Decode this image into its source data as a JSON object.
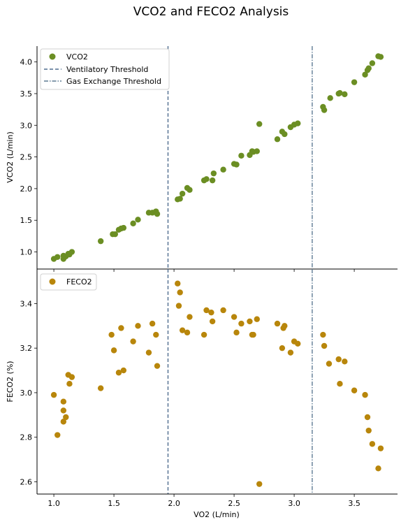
{
  "title": "VCO2 and FECO2 Analysis",
  "xlabel": "VO2 (L/min)",
  "colors": {
    "vco2": "#6b8e23",
    "feco2": "#b8860b",
    "vt_line": "#4f6d8f",
    "get_line": "#5e7b94"
  },
  "chart_data": [
    {
      "type": "scatter",
      "ylabel": "VCO2 (L/min)",
      "xlim": [
        0.86,
        3.86
      ],
      "ylim": [
        0.73,
        4.25
      ],
      "x_ticks": [
        1.0,
        1.5,
        2.0,
        2.5,
        3.0,
        3.5
      ],
      "y_ticks": [
        1.0,
        1.5,
        2.0,
        2.5,
        3.0,
        3.5,
        4.0
      ],
      "legend_position": "top-left",
      "legend": [
        "VCO2",
        "Ventilatory Threshold",
        "Gas Exchange Threshold"
      ],
      "series": [
        {
          "name": "VCO2",
          "points": [
            [
              1.0,
              0.89
            ],
            [
              1.03,
              0.92
            ],
            [
              1.08,
              0.94
            ],
            [
              1.08,
              0.89
            ],
            [
              1.1,
              0.93
            ],
            [
              1.12,
              0.97
            ],
            [
              1.13,
              0.96
            ],
            [
              1.15,
              1.0
            ],
            [
              1.39,
              1.17
            ],
            [
              1.49,
              1.28
            ],
            [
              1.51,
              1.28
            ],
            [
              1.54,
              1.35
            ],
            [
              1.56,
              1.37
            ],
            [
              1.58,
              1.38
            ],
            [
              1.66,
              1.45
            ],
            [
              1.7,
              1.51
            ],
            [
              1.79,
              1.62
            ],
            [
              1.82,
              1.62
            ],
            [
              1.85,
              1.63
            ],
            [
              1.85,
              1.64
            ],
            [
              1.86,
              1.6
            ],
            [
              2.03,
              1.83
            ],
            [
              2.05,
              1.84
            ],
            [
              2.07,
              1.92
            ],
            [
              2.11,
              2.01
            ],
            [
              2.13,
              1.98
            ],
            [
              2.25,
              2.13
            ],
            [
              2.27,
              2.15
            ],
            [
              2.32,
              2.13
            ],
            [
              2.33,
              2.24
            ],
            [
              2.41,
              2.3
            ],
            [
              2.5,
              2.39
            ],
            [
              2.52,
              2.38
            ],
            [
              2.56,
              2.52
            ],
            [
              2.63,
              2.53
            ],
            [
              2.65,
              2.59
            ],
            [
              2.66,
              2.58
            ],
            [
              2.69,
              2.59
            ],
            [
              2.71,
              3.02
            ],
            [
              2.86,
              2.78
            ],
            [
              2.9,
              2.9
            ],
            [
              2.92,
              2.86
            ],
            [
              2.97,
              2.97
            ],
            [
              3.0,
              3.01
            ],
            [
              3.03,
              3.03
            ],
            [
              3.24,
              3.29
            ],
            [
              3.25,
              3.24
            ],
            [
              3.3,
              3.43
            ],
            [
              3.37,
              3.5
            ],
            [
              3.38,
              3.51
            ],
            [
              3.42,
              3.49
            ],
            [
              3.5,
              3.68
            ],
            [
              3.59,
              3.8
            ],
            [
              3.61,
              3.87
            ],
            [
              3.62,
              3.9
            ],
            [
              3.65,
              3.98
            ],
            [
              3.7,
              4.09
            ],
            [
              3.72,
              4.08
            ]
          ]
        }
      ],
      "ventilatory_threshold": 1.95,
      "gas_exchange_threshold": 3.15
    },
    {
      "type": "scatter",
      "ylabel": "FECO2 (%)",
      "xlim": [
        0.86,
        3.86
      ],
      "ylim": [
        2.545,
        3.555
      ],
      "x_ticks": [
        1.0,
        1.5,
        2.0,
        2.5,
        3.0,
        3.5
      ],
      "y_ticks": [
        2.6,
        2.8,
        3.0,
        3.2,
        3.4
      ],
      "legend_position": "top-left",
      "legend": [
        "FECO2"
      ],
      "series": [
        {
          "name": "FECO2",
          "points": [
            [
              1.0,
              2.99
            ],
            [
              1.03,
              2.81
            ],
            [
              1.08,
              2.87
            ],
            [
              1.08,
              2.92
            ],
            [
              1.08,
              2.96
            ],
            [
              1.1,
              2.89
            ],
            [
              1.12,
              3.08
            ],
            [
              1.13,
              3.04
            ],
            [
              1.15,
              3.07
            ],
            [
              1.39,
              3.02
            ],
            [
              1.48,
              3.26
            ],
            [
              1.5,
              3.19
            ],
            [
              1.54,
              3.09
            ],
            [
              1.56,
              3.29
            ],
            [
              1.58,
              3.1
            ],
            [
              1.66,
              3.23
            ],
            [
              1.7,
              3.3
            ],
            [
              1.79,
              3.18
            ],
            [
              1.82,
              3.31
            ],
            [
              1.85,
              3.26
            ],
            [
              1.86,
              3.12
            ],
            [
              2.03,
              3.49
            ],
            [
              2.04,
              3.39
            ],
            [
              2.05,
              3.45
            ],
            [
              2.07,
              3.28
            ],
            [
              2.11,
              3.27
            ],
            [
              2.13,
              3.34
            ],
            [
              2.25,
              3.26
            ],
            [
              2.27,
              3.37
            ],
            [
              2.31,
              3.36
            ],
            [
              2.32,
              3.32
            ],
            [
              2.41,
              3.37
            ],
            [
              2.5,
              3.34
            ],
            [
              2.52,
              3.27
            ],
            [
              2.56,
              3.31
            ],
            [
              2.63,
              3.32
            ],
            [
              2.65,
              3.26
            ],
            [
              2.66,
              3.26
            ],
            [
              2.69,
              3.33
            ],
            [
              2.71,
              2.59
            ],
            [
              2.86,
              3.31
            ],
            [
              2.9,
              3.2
            ],
            [
              2.91,
              3.29
            ],
            [
              2.92,
              3.3
            ],
            [
              2.97,
              3.18
            ],
            [
              3.0,
              3.23
            ],
            [
              3.03,
              3.22
            ],
            [
              3.24,
              3.26
            ],
            [
              3.25,
              3.21
            ],
            [
              3.29,
              3.13
            ],
            [
              3.37,
              3.15
            ],
            [
              3.38,
              3.04
            ],
            [
              3.42,
              3.14
            ],
            [
              3.5,
              3.01
            ],
            [
              3.59,
              2.99
            ],
            [
              3.61,
              2.89
            ],
            [
              3.62,
              2.83
            ],
            [
              3.65,
              2.77
            ],
            [
              3.7,
              2.66
            ],
            [
              3.72,
              2.75
            ]
          ]
        }
      ]
    }
  ]
}
